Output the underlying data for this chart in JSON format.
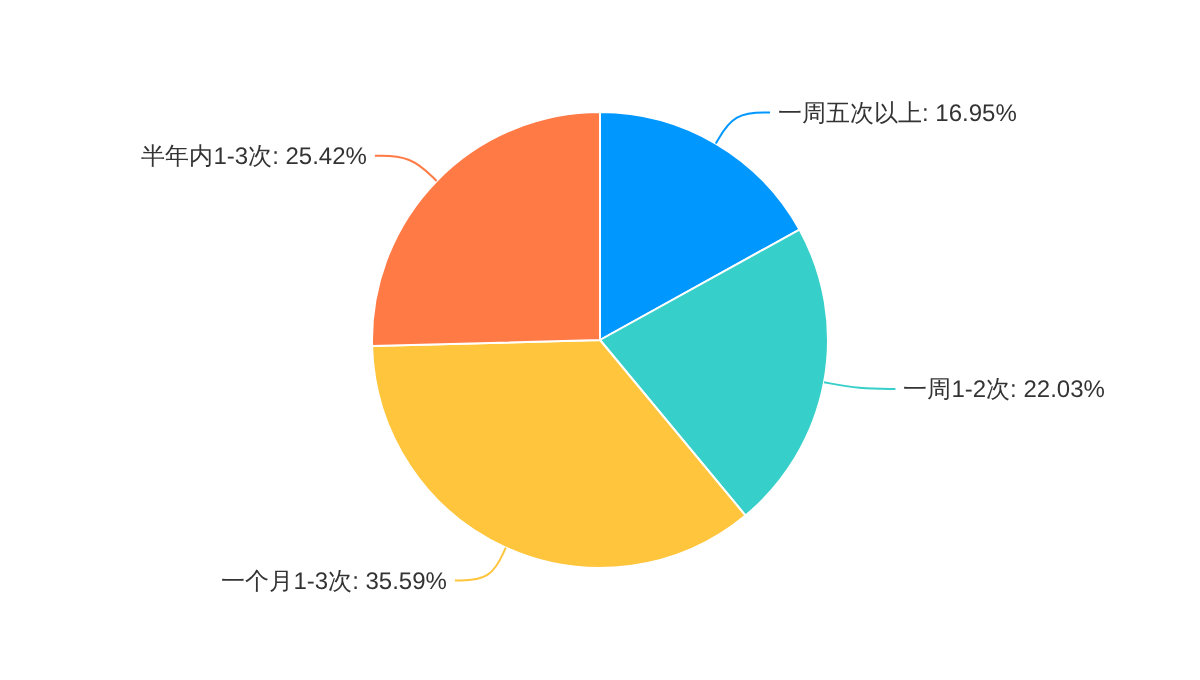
{
  "chart_data": {
    "type": "pie",
    "categories": [
      "一周五次以上",
      "一周1-2次",
      "一个月1-3次",
      "半年内1-3次"
    ],
    "values": [
      16.95,
      22.03,
      35.59,
      25.42
    ],
    "value_labels": [
      "16.95%",
      "22.03%",
      "35.59%",
      "25.42%"
    ],
    "colors": [
      "#0098ff",
      "#36cfc9",
      "#ffc53d",
      "#ff7a45"
    ]
  }
}
